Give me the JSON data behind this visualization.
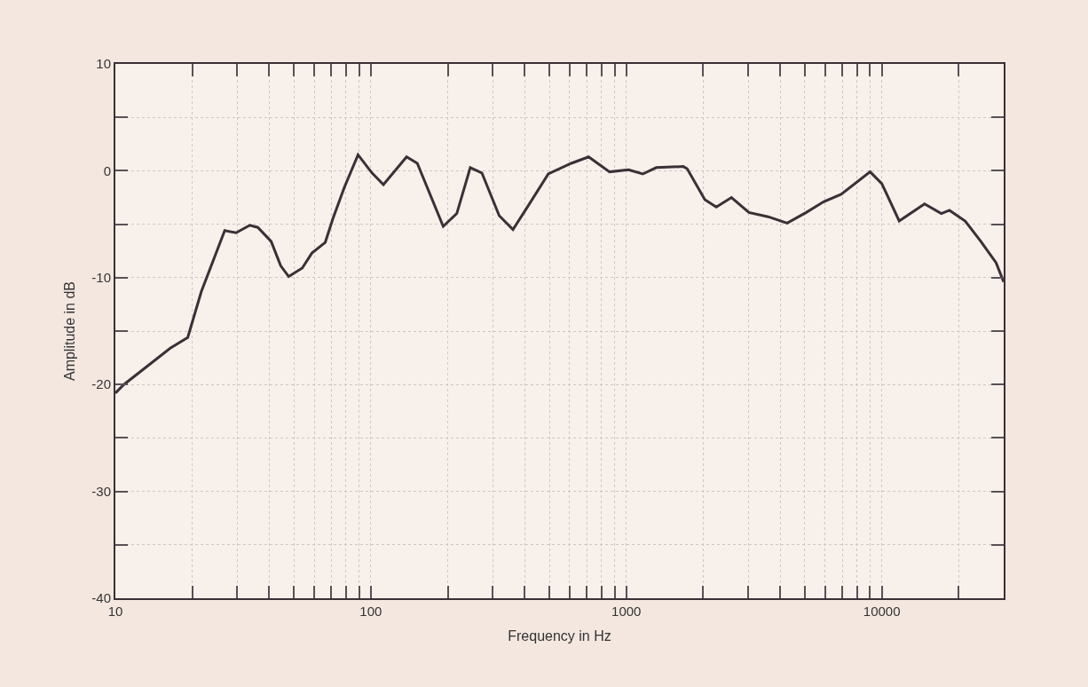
{
  "chart_data": {
    "type": "line",
    "xlabel": "Frequency in Hz",
    "ylabel": "Amplitude in dB",
    "log": "x",
    "grid": true,
    "marker": "none",
    "line_style": "solid",
    "xlim": [
      10,
      30000
    ],
    "ylim": [
      -40,
      10
    ],
    "xticks": [
      10,
      {
        "value": 20,
        "label": null
      },
      {
        "value": 30,
        "label": null
      },
      {
        "value": 40,
        "label": null
      },
      {
        "value": 50,
        "label": null
      },
      {
        "value": 60,
        "label": null
      },
      {
        "value": 70,
        "label": null
      },
      {
        "value": 80,
        "label": null
      },
      {
        "value": 90,
        "label": null
      },
      100,
      {
        "value": 200,
        "label": null
      },
      {
        "value": 300,
        "label": null
      },
      {
        "value": 400,
        "label": null
      },
      {
        "value": 500,
        "label": null
      },
      {
        "value": 600,
        "label": null
      },
      {
        "value": 700,
        "label": null
      },
      {
        "value": 800,
        "label": null
      },
      {
        "value": 900,
        "label": null
      },
      1000,
      {
        "value": 2000,
        "label": null
      },
      {
        "value": 3000,
        "label": null
      },
      {
        "value": 4000,
        "label": null
      },
      {
        "value": 5000,
        "label": null
      },
      {
        "value": 6000,
        "label": null
      },
      {
        "value": 7000,
        "label": null
      },
      {
        "value": 8000,
        "label": null
      },
      {
        "value": 9000,
        "label": null
      },
      10000,
      {
        "value": 20000,
        "label": null
      }
    ],
    "yticks": [
      -40,
      {
        "value": -35,
        "label": null
      },
      -30,
      {
        "value": -25,
        "label": null
      },
      -20,
      {
        "value": -15,
        "label": null
      },
      -10,
      {
        "value": -5,
        "label": null
      },
      0,
      {
        "value": 5,
        "label": null
      },
      10
    ],
    "x": [
      10,
      10.8,
      16.4,
      19.2,
      21.7,
      26.8,
      29.7,
      33.6,
      36.1,
      40.7,
      44.4,
      47.7,
      53.9,
      58.8,
      66.3,
      71,
      78.9,
      89.1,
      101,
      112,
      138,
      152,
      192,
      217,
      245,
      272,
      318,
      360,
      415,
      495,
      609,
      712,
      860,
      1020,
      1160,
      1310,
      1670,
      1730,
      2030,
      2250,
      2580,
      3020,
      3590,
      4260,
      5060,
      5920,
      6930,
      9000,
      10000,
      11700,
      14700,
      17100,
      18400,
      21200,
      24400,
      28000,
      30000
    ],
    "series": [
      {
        "color": "#3a3036",
        "values": [
          -20.8,
          -20,
          -16.6,
          -15.6,
          -11.3,
          -5.6,
          -5.8,
          -5.1,
          -5.3,
          -6.6,
          -8.9,
          -9.9,
          -9.1,
          -7.7,
          -6.7,
          -4.5,
          -1.5,
          1.5,
          -0.2,
          -1.3,
          1.3,
          0.7,
          -5.2,
          -4.0,
          0.3,
          -0.2,
          -4.2,
          -5.5,
          -3.2,
          -0.3,
          0.7,
          1.3,
          -0.1,
          0.1,
          -0.3,
          0.3,
          0.4,
          0.2,
          -2.7,
          -3.4,
          -2.5,
          -3.9,
          -4.3,
          -4.9,
          -3.9,
          -2.9,
          -2.2,
          -0.1,
          -1.2,
          -4.7,
          -3.1,
          -4.0,
          -3.7,
          -4.7,
          -6.6,
          -8.6,
          -10.4
        ]
      }
    ]
  }
}
